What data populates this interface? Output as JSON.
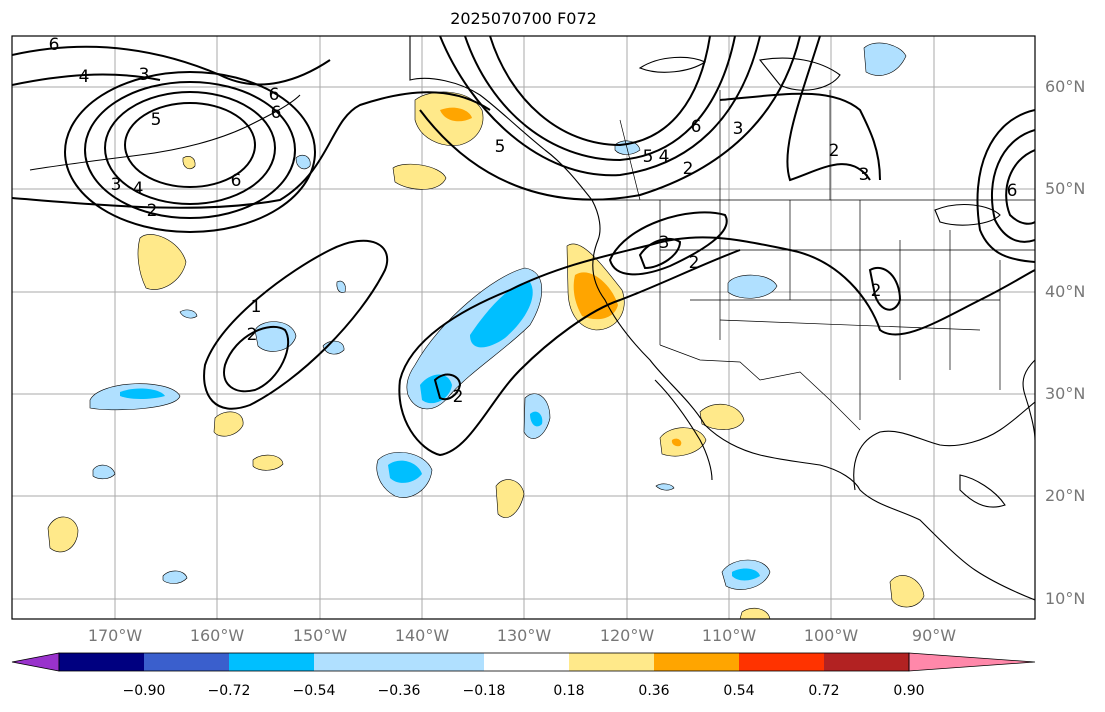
{
  "title": "2025070700 F072",
  "lat_ticks": [
    "60°N",
    "50°N",
    "40°N",
    "30°N",
    "20°N",
    "10°N"
  ],
  "lon_ticks": [
    "170°W",
    "160°W",
    "150°W",
    "140°W",
    "130°W",
    "120°W",
    "110°W",
    "100°W",
    "90°W"
  ],
  "colorbar": {
    "labels": [
      "−0.90",
      "−0.72",
      "−0.54",
      "−0.36",
      "−0.18",
      "0.18",
      "0.36",
      "0.54",
      "0.72",
      "0.90"
    ],
    "colors": [
      "#9932cc",
      "#000080",
      "#3a5fcd",
      "#00bfff",
      "#b0e0ff",
      "#ffffff",
      "#ffe98a",
      "#ffa500",
      "#ff3300",
      "#b22222",
      "#ff88aa"
    ]
  },
  "contour_labels": [
    "6",
    "4",
    "3",
    "5",
    "6",
    "4",
    "3",
    "2",
    "6",
    "5",
    "6",
    "3",
    "2",
    "2",
    "5",
    "4",
    "6",
    "3",
    "2",
    "1",
    "2",
    "3",
    "2",
    "2",
    "6"
  ]
}
